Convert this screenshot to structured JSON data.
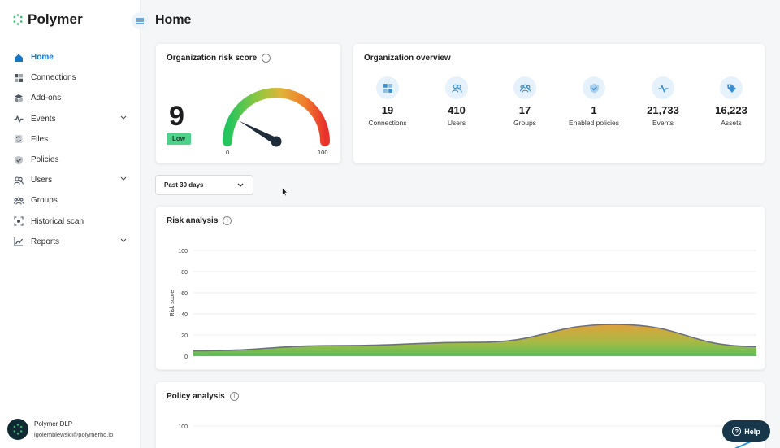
{
  "brand": {
    "name": "Polymer",
    "accent": "#1677c7",
    "logo_color": "#2fbf71"
  },
  "page": {
    "title": "Home"
  },
  "nav": [
    {
      "label": "Home",
      "icon": "home-icon",
      "active": true
    },
    {
      "label": "Connections",
      "icon": "grid-icon"
    },
    {
      "label": "Add-ons",
      "icon": "cube-icon"
    },
    {
      "label": "Events",
      "icon": "activity-icon",
      "expandable": true
    },
    {
      "label": "Files",
      "icon": "sync-file-icon"
    },
    {
      "label": "Policies",
      "icon": "shield-check-icon"
    },
    {
      "label": "Users",
      "icon": "users-icon",
      "expandable": true
    },
    {
      "label": "Groups",
      "icon": "group-icon"
    },
    {
      "label": "Historical scan",
      "icon": "scan-icon"
    },
    {
      "label": "Reports",
      "icon": "chart-icon",
      "expandable": true
    }
  ],
  "user": {
    "name": "Polymer DLP",
    "email": "lgolembiewski@polymerhq.io"
  },
  "risk_score": {
    "title": "Organization risk score",
    "value": "9",
    "level": "Low",
    "min": "0",
    "max": "100",
    "score_num": 9
  },
  "overview": {
    "title": "Organization overview",
    "items": [
      {
        "value": "19",
        "label": "Connections",
        "icon": "grid-icon"
      },
      {
        "value": "410",
        "label": "Users",
        "icon": "users-icon"
      },
      {
        "value": "17",
        "label": "Groups",
        "icon": "group-icon"
      },
      {
        "value": "1",
        "label": "Enabled policies",
        "icon": "shield-check-icon"
      },
      {
        "value": "21,733",
        "label": "Events",
        "icon": "activity-icon"
      },
      {
        "value": "16,223",
        "label": "Assets",
        "icon": "tag-icon"
      }
    ]
  },
  "filter": {
    "selected": "Past 30 days"
  },
  "help": {
    "label": "Help"
  },
  "chart_data": [
    {
      "type": "area",
      "title": "Risk analysis",
      "ylabel": "Risk score",
      "xlabel": "",
      "ylim": [
        0,
        100
      ],
      "yticks": [
        "100",
        "80",
        "60",
        "40",
        "20",
        "0"
      ],
      "grid": true,
      "x": [
        0,
        1,
        2,
        3,
        4,
        5
      ],
      "series": [
        {
          "name": "Risk score",
          "values": [
            5,
            10,
            13,
            30,
            9,
            9
          ]
        }
      ],
      "x_index": [
        0,
        1,
        2,
        3,
        4,
        5
      ]
    },
    {
      "type": "line",
      "title": "Policy analysis",
      "ylabel": "",
      "ylim": [
        0,
        100
      ],
      "yticks": [
        "100"
      ],
      "grid": true
    }
  ]
}
